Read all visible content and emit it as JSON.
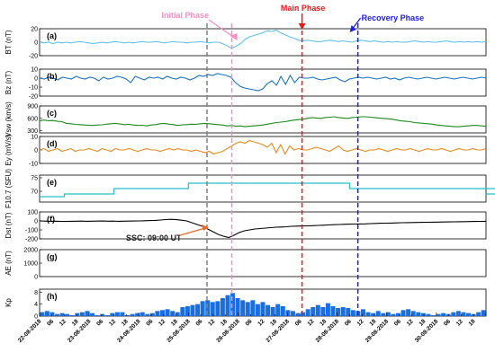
{
  "annotations": {
    "initial_phase": "Initial Phase",
    "main_phase": "Main Phase",
    "recovery_phase": "Recovery Phase",
    "ssc": "SSC: 09:00 UT"
  },
  "colors": {
    "initial": "#f48fc1",
    "main": "#e8191b",
    "recovery": "#1c1ce6",
    "ssc_arrow": "#e8692b",
    "bt": "#5fc0ea",
    "bz": "#1a73c4",
    "vsw": "#1c8a1c",
    "ey": "#e88a1e",
    "f107": "#22c0c8",
    "dst": "#000000",
    "kp": "#1a6fe0",
    "grey_line": "#808080"
  },
  "chart_data": {
    "type": "line",
    "x_start": "22-08-2018 00:00",
    "x_end": "31-08-2018 00:00",
    "x_unit": "hours",
    "date_labels": [
      "22-08-2018",
      "23-08-2018",
      "24-08-2018",
      "25-08-2018",
      "26-08-2018",
      "27-08-2018",
      "28-08-2018",
      "29-08-2018",
      "30-08-2018"
    ],
    "hour_labels": [
      "06",
      "12",
      "18"
    ],
    "vertical_markers_hours": {
      "grey": 81,
      "initial": 93,
      "main": 127,
      "recovery": 154
    },
    "panels": [
      {
        "id": "bt",
        "letter": "(a)",
        "ylabel": "BT",
        "yunit": "(nT)",
        "ylim": [
          -20,
          20
        ],
        "yticks": [
          "-20",
          "0",
          "20"
        ],
        "values": [
          0,
          -1,
          0,
          -2,
          0,
          -1,
          0,
          -1,
          0,
          1,
          0,
          -1,
          -2,
          -1,
          0,
          -1,
          0,
          1,
          0,
          -1,
          0,
          -1,
          0,
          1,
          0,
          0,
          1,
          0,
          -1,
          0,
          1,
          0,
          0,
          -1,
          0,
          0,
          1,
          0,
          -1,
          0,
          0,
          -2,
          -5,
          -9,
          -6,
          -2,
          4,
          8,
          10,
          12,
          14,
          17,
          16,
          18,
          14,
          11,
          8,
          6,
          3,
          2,
          3,
          2,
          1,
          1,
          2,
          3,
          2,
          1,
          2,
          1,
          0,
          2,
          3,
          2,
          1,
          2,
          1,
          0,
          1,
          0,
          1,
          0,
          0,
          1,
          2,
          1,
          0,
          1,
          0,
          0,
          1,
          2,
          1,
          0,
          1,
          0,
          1,
          0,
          1,
          0,
          1
        ]
      },
      {
        "id": "bz",
        "letter": "(b)",
        "ylabel": "Bz",
        "yunit": "(nT)",
        "ylim": [
          -20,
          10
        ],
        "yticks": [
          "-20",
          "-10",
          "0",
          "10"
        ],
        "values": [
          0,
          -1,
          1,
          0,
          -2,
          1,
          0,
          -1,
          2,
          0,
          -1,
          1,
          0,
          -3,
          1,
          -1,
          0,
          2,
          1,
          -1,
          -5,
          2,
          0,
          -2,
          1,
          0,
          1,
          -1,
          2,
          0,
          -1,
          1,
          0,
          -2,
          0,
          3,
          2,
          4,
          3,
          5,
          4,
          3,
          1,
          -5,
          -9,
          -11,
          -12,
          -13,
          -14,
          -12,
          -6,
          -3,
          -8,
          2,
          -7,
          3,
          -5,
          1,
          0,
          0,
          1,
          -1,
          -2,
          -1,
          0,
          1,
          -2,
          -4,
          -1,
          0,
          1,
          0,
          1,
          0,
          -1,
          0,
          1,
          -1,
          0,
          -2,
          0,
          1,
          0,
          -1,
          0,
          1,
          0,
          -1,
          0,
          1,
          0,
          -1,
          0,
          1,
          0,
          -1,
          0,
          1,
          0
        ]
      },
      {
        "id": "vsw",
        "letter": "(c)",
        "ylabel": "Vsw",
        "yunit": "(km/s)",
        "ylim": [
          250,
          900
        ],
        "yticks": [
          "300",
          "600",
          "900"
        ],
        "values": [
          540,
          560,
          545,
          550,
          530,
          520,
          480,
          470,
          455,
          450,
          440,
          435,
          430,
          440,
          445,
          460,
          470,
          480,
          465,
          450,
          455,
          440,
          430,
          435,
          420,
          440,
          450,
          470,
          480,
          460,
          450,
          430,
          445,
          450,
          460,
          455,
          470,
          480,
          470,
          460,
          450,
          440,
          420,
          430,
          410,
          420,
          400,
          410,
          420,
          430,
          440,
          460,
          480,
          500,
          510,
          520,
          540,
          560,
          570,
          580,
          600,
          620,
          610,
          600,
          620,
          630,
          640,
          620,
          610,
          600,
          620,
          630,
          640,
          640,
          630,
          620,
          610,
          600,
          590,
          580,
          560,
          540,
          530,
          520,
          500,
          490,
          480,
          470,
          460,
          440,
          430,
          420,
          410,
          400,
          400,
          410,
          420,
          430,
          430,
          420,
          410
        ]
      },
      {
        "id": "ey",
        "letter": "(d)",
        "ylabel": "Ey",
        "yunit": "(mV/s)",
        "ylim": [
          -10,
          10
        ],
        "yticks": [
          "-10",
          "0",
          "10"
        ],
        "values": [
          0,
          1,
          -1,
          0,
          1,
          -1,
          0,
          1,
          -1,
          0,
          0,
          1,
          0,
          -1,
          1,
          0,
          -1,
          1,
          0,
          0,
          1,
          0,
          -1,
          0,
          1,
          0,
          0,
          -1,
          0,
          1,
          0,
          1,
          0,
          0,
          -1,
          0,
          -1,
          -2,
          -1,
          -3,
          -2,
          -1,
          1,
          3,
          5,
          6,
          5,
          7,
          6,
          5,
          4,
          2,
          5,
          -2,
          4,
          -3,
          3,
          0,
          1,
          0,
          0,
          1,
          2,
          1,
          0,
          -1,
          1,
          3,
          0,
          -1,
          0,
          1,
          0,
          -1,
          0,
          0,
          1,
          0,
          -1,
          0,
          1,
          0,
          0,
          1,
          0,
          -1,
          0,
          1,
          0,
          0,
          1,
          0,
          -1,
          0,
          1,
          0,
          0,
          1,
          0,
          0,
          1
        ]
      },
      {
        "id": "f107",
        "letter": "(e)",
        "ylabel": "F10.7",
        "yunit": "(SFU)",
        "ylim": [
          66,
          76
        ],
        "yticks": [
          "70",
          "75"
        ],
        "step_values": [
          [
            0,
            68
          ],
          [
            12,
            69
          ],
          [
            36,
            71
          ],
          [
            72,
            73
          ],
          [
            90,
            73
          ],
          [
            150,
            71
          ],
          [
            249,
            71
          ],
          [
            255,
            69
          ],
          [
            279,
            69
          ]
        ]
      },
      {
        "id": "dst",
        "letter": "(f)",
        "ylabel": "Dst",
        "yunit": "(nT)",
        "ylim": [
          -200,
          100
        ],
        "yticks": [
          "-200",
          "-100",
          "0",
          "100"
        ],
        "values": [
          0,
          -2,
          -4,
          -3,
          -5,
          -6,
          -4,
          -3,
          -2,
          -4,
          -3,
          -2,
          -1,
          -3,
          -2,
          -4,
          -3,
          -2,
          -1,
          0,
          2,
          4,
          6,
          10,
          15,
          18,
          14,
          8,
          0,
          -20,
          -40,
          -60,
          -90,
          -120,
          -150,
          -170,
          -185,
          -160,
          -130,
          -110,
          -100,
          -90,
          -85,
          -80,
          -75,
          -70,
          -68,
          -65,
          -60,
          -58,
          -56,
          -55,
          -53,
          -50,
          -48,
          -45,
          -42,
          -40,
          -38,
          -36,
          -35,
          -34,
          -33,
          -30,
          -28,
          -26,
          -25,
          -24,
          -22,
          -20,
          -19,
          -18,
          -17,
          -16,
          -15,
          -14,
          -13,
          -12,
          -11,
          -10,
          -9,
          -8,
          -7,
          -6,
          -5,
          -4
        ]
      },
      {
        "id": "ae",
        "letter": "(g)",
        "ylabel": "AE",
        "yunit": "(nT)",
        "ylim": [
          0,
          2000
        ],
        "yticks": [
          "0",
          "1000",
          "2000"
        ],
        "values": []
      },
      {
        "id": "kp",
        "letter": "(h)",
        "ylabel": "Kp",
        "yunit": "",
        "ylim": [
          0,
          9
        ],
        "yticks": [
          "0",
          "4",
          "8"
        ],
        "bar_values": [
          1.3,
          1.7,
          1.3,
          0.7,
          1,
          0.7,
          0.3,
          1,
          1.3,
          1.7,
          1,
          0.3,
          0.7,
          0.3,
          1,
          1.3,
          1.3,
          0.3,
          0.7,
          1,
          1.3,
          0.7,
          1,
          1.7,
          2,
          2.3,
          1.7,
          1.3,
          3,
          3.3,
          3.7,
          4,
          5,
          5.3,
          4.7,
          5,
          6,
          7,
          7.7,
          6,
          5.3,
          4.7,
          5.3,
          4,
          4.7,
          3.7,
          3,
          4,
          3.3,
          2,
          1.7,
          1,
          1.3,
          2.3,
          3,
          3.7,
          3,
          4.3,
          3.3,
          2.7,
          3,
          2.7,
          2,
          1.7,
          2.3,
          1.3,
          1,
          1.7,
          1,
          1.3,
          0.7,
          1,
          2,
          2.3,
          1.7,
          1.3,
          1,
          0.7,
          0.3,
          0.7,
          1,
          0.7,
          1.3,
          1.7,
          1.3,
          1,
          0.7,
          1.3,
          2
        ]
      }
    ]
  }
}
